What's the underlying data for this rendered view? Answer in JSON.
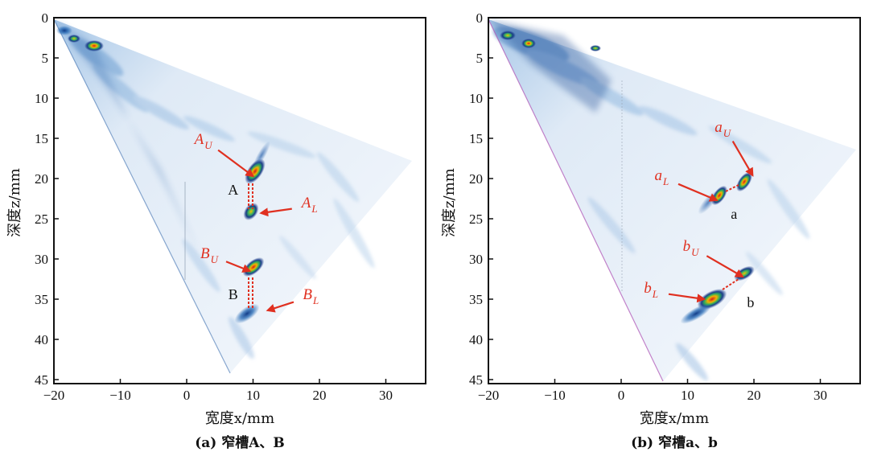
{
  "colors": {
    "frame": "#111111",
    "annotation": "#e03020",
    "wedge_light": "#eaf2fa",
    "wedge_mid": "#b7d2ec",
    "wedge_dark": "#1f5fa8"
  },
  "chart_data": [
    {
      "type": "heatmap",
      "title": "(a) 窄槽A、B",
      "xlabel": "宽度x/mm",
      "ylabel": "深度z/mm",
      "xlim": [
        -20,
        36
      ],
      "ylim": [
        45.5,
        0
      ],
      "xticks": [
        "−20",
        "−10",
        "0",
        "10",
        "20",
        "30"
      ],
      "yticks": [
        "0",
        "5",
        "10",
        "15",
        "20",
        "25",
        "30",
        "35",
        "40",
        "45"
      ],
      "sector_outline": [
        [
          -20,
          0
        ],
        [
          34.8,
          17.5
        ],
        [
          5.5,
          44.2
        ]
      ],
      "point_labels": [
        {
          "text": "A",
          "x": 7,
          "y": 22
        },
        {
          "text": "B",
          "x": 7,
          "y": 35
        }
      ],
      "annotations": [
        {
          "main": "A",
          "sub": "U",
          "label_x": 2.5,
          "label_y": 15.7,
          "target_x": 10,
          "target_y": 19.7
        },
        {
          "main": "A",
          "sub": "L",
          "label_x": 18.5,
          "label_y": 23.6,
          "target_x": 11.2,
          "target_y": 24.3
        },
        {
          "main": "B",
          "sub": "U",
          "label_x": 3.4,
          "label_y": 29.9,
          "target_x": 9.5,
          "target_y": 31.5
        },
        {
          "main": "B",
          "sub": "L",
          "label_x": 18.7,
          "label_y": 35.0,
          "target_x": 12.2,
          "target_y": 36.4
        }
      ]
    },
    {
      "type": "heatmap",
      "title": "(b) 窄槽a、b",
      "xlabel": "宽度x/mm",
      "ylabel": "深度z/mm",
      "xlim": [
        -20,
        36
      ],
      "ylim": [
        45.5,
        0
      ],
      "xticks": [
        "−20",
        "−10",
        "0",
        "10",
        "20",
        "30"
      ],
      "yticks": [
        "0",
        "5",
        "10",
        "15",
        "20",
        "25",
        "30",
        "35",
        "40",
        "45"
      ],
      "sector_outline": [
        [
          -20,
          0
        ],
        [
          36,
          16.5
        ],
        [
          7,
          45.5
        ]
      ],
      "point_labels": [
        {
          "text": "a",
          "x": 17,
          "y": 25
        },
        {
          "text": "b",
          "x": 19.5,
          "y": 36
        }
      ],
      "annotations": [
        {
          "main": "a",
          "sub": "U",
          "label_x": 15.3,
          "label_y": 14.2,
          "target_x": 19.8,
          "target_y": 19.6
        },
        {
          "main": "a",
          "sub": "L",
          "label_x": 6.1,
          "label_y": 20.2,
          "target_x": 14.4,
          "target_y": 22.7
        },
        {
          "main": "b",
          "sub": "U",
          "label_x": 10.5,
          "label_y": 29.0,
          "target_x": 18.3,
          "target_y": 32.2
        },
        {
          "main": "b",
          "sub": "L",
          "label_x": 4.5,
          "label_y": 34.2,
          "target_x": 12.5,
          "target_y": 35.0
        }
      ]
    }
  ]
}
